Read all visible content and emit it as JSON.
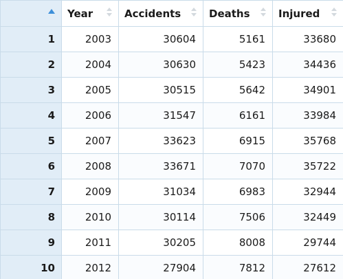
{
  "table": {
    "columns": [
      "Year",
      "Accidents",
      "Deaths",
      "Injured"
    ],
    "rows": [
      {
        "n": "1",
        "year": "2003",
        "accidents": "30604",
        "deaths": "5161",
        "injured": "33680"
      },
      {
        "n": "2",
        "year": "2004",
        "accidents": "30630",
        "deaths": "5423",
        "injured": "34436"
      },
      {
        "n": "3",
        "year": "2005",
        "accidents": "30515",
        "deaths": "5642",
        "injured": "34901"
      },
      {
        "n": "4",
        "year": "2006",
        "accidents": "31547",
        "deaths": "6161",
        "injured": "33984"
      },
      {
        "n": "5",
        "year": "2007",
        "accidents": "33623",
        "deaths": "6915",
        "injured": "35768"
      },
      {
        "n": "6",
        "year": "2008",
        "accidents": "33671",
        "deaths": "7070",
        "injured": "35722"
      },
      {
        "n": "7",
        "year": "2009",
        "accidents": "31034",
        "deaths": "6983",
        "injured": "32944"
      },
      {
        "n": "8",
        "year": "2010",
        "accidents": "30114",
        "deaths": "7506",
        "injured": "32449"
      },
      {
        "n": "9",
        "year": "2011",
        "accidents": "30205",
        "deaths": "8008",
        "injured": "29744"
      },
      {
        "n": "10",
        "year": "2012",
        "accidents": "27904",
        "deaths": "7812",
        "injured": "27612"
      }
    ]
  },
  "colors": {
    "accent": "#3d8fd9",
    "rownum_bg": "#e1edf7",
    "border": "#c9dbe9"
  },
  "icons": {
    "corner": "sort-ascending-icon",
    "column_sort": "sort-toggle-icon"
  }
}
